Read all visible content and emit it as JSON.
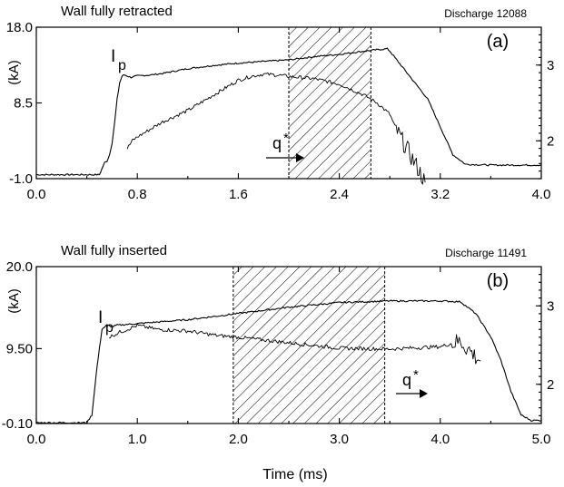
{
  "chart_data": [
    {
      "type": "line",
      "panel_label": "(a)",
      "title": "Wall fully retracted",
      "discharge": "Discharge 12088",
      "xlabel": "",
      "ylabel": "(kA)",
      "xlim": [
        0.0,
        4.0
      ],
      "ylim": [
        -1.0,
        18.0
      ],
      "y2lim": [
        1.5,
        3.5
      ],
      "x_ticks": [
        "0.0",
        "0.8",
        "1.6",
        "2.4",
        "3.2",
        "4.0"
      ],
      "y_ticks": [
        "18.0",
        "8.5",
        "-1.0"
      ],
      "y_tick_values": [
        18.0,
        8.5,
        -1.0
      ],
      "y2_ticks": [
        "3",
        "2"
      ],
      "y2_tick_values": [
        3,
        2
      ],
      "shaded_region": [
        2.0,
        2.65
      ],
      "series": [
        {
          "name": "Ip",
          "label_main": "I",
          "label_sub": "p",
          "axis": "left",
          "x": [
            0.0,
            0.4,
            0.5,
            0.54,
            0.56,
            0.58,
            0.6,
            0.62,
            0.64,
            0.66,
            0.68,
            0.7,
            0.75,
            0.8,
            0.9,
            1.0,
            1.2,
            1.4,
            1.6,
            1.8,
            2.0,
            2.2,
            2.4,
            2.6,
            2.78,
            2.8,
            2.85,
            2.9,
            3.0,
            3.1,
            3.2,
            3.3,
            3.4,
            3.6,
            4.0
          ],
          "values": [
            -0.5,
            -0.5,
            -0.5,
            1.0,
            1.2,
            2.0,
            3.5,
            6.0,
            9.0,
            11.0,
            11.9,
            12.0,
            11.7,
            11.9,
            12.0,
            12.2,
            12.8,
            13.2,
            13.5,
            13.7,
            13.9,
            14.3,
            14.6,
            15.0,
            15.3,
            15.0,
            14.0,
            13.0,
            11.0,
            9.0,
            5.5,
            2.0,
            0.8,
            0.7,
            0.7
          ]
        },
        {
          "name": "q*",
          "label_main": "q",
          "label_sup": "*",
          "axis": "right",
          "x": [
            0.72,
            0.76,
            0.8,
            0.9,
            1.0,
            1.2,
            1.4,
            1.6,
            1.7,
            1.8,
            1.9,
            2.0,
            2.2,
            2.4,
            2.6,
            2.7,
            2.8,
            2.85,
            2.9,
            2.95,
            3.0,
            3.05,
            3.08
          ],
          "values": [
            1.9,
            2.0,
            2.05,
            2.15,
            2.25,
            2.4,
            2.6,
            2.8,
            2.85,
            2.88,
            2.87,
            2.85,
            2.82,
            2.75,
            2.6,
            2.5,
            2.35,
            2.15,
            2.0,
            1.85,
            1.7,
            1.55,
            1.45
          ]
        }
      ]
    },
    {
      "type": "line",
      "panel_label": "(b)",
      "title": "Wall fully inserted",
      "discharge": "Discharge 11491",
      "xlabel": "Time (ms)",
      "ylabel": "(kA)",
      "xlim": [
        0.0,
        5.0
      ],
      "ylim": [
        -0.1,
        20.0
      ],
      "y2lim": [
        1.5,
        3.5
      ],
      "x_ticks": [
        "0.0",
        "1.0",
        "2.0",
        "3.0",
        "4.0",
        "5.0"
      ],
      "y_ticks": [
        "20.0",
        "9.50",
        "-0.10"
      ],
      "y_tick_values": [
        20.0,
        9.5,
        -0.1
      ],
      "y2_ticks": [
        "3",
        "2"
      ],
      "y2_tick_values": [
        3,
        2
      ],
      "shaded_region": [
        1.95,
        3.45
      ],
      "series": [
        {
          "name": "Ip",
          "label_main": "I",
          "label_sub": "p",
          "axis": "left",
          "x": [
            0.0,
            0.5,
            0.55,
            0.6,
            0.65,
            0.7,
            0.75,
            0.8,
            1.0,
            1.5,
            2.0,
            2.5,
            3.0,
            3.5,
            4.0,
            4.2,
            4.25,
            4.35,
            4.5,
            4.6,
            4.7,
            4.8,
            4.9,
            5.0
          ],
          "values": [
            0.0,
            0.0,
            1.0,
            7.0,
            12.0,
            12.5,
            12.3,
            12.5,
            12.7,
            13.2,
            14.0,
            14.8,
            15.4,
            15.6,
            15.6,
            15.5,
            15.0,
            14.0,
            11.0,
            8.0,
            4.0,
            1.0,
            0.3,
            0.3
          ]
        },
        {
          "name": "q*",
          "label_main": "q",
          "label_sup": "*",
          "axis": "right",
          "x": [
            0.72,
            0.8,
            1.0,
            1.2,
            1.5,
            1.8,
            2.0,
            2.5,
            3.0,
            3.5,
            4.0,
            4.2,
            4.3,
            4.35,
            4.4
          ],
          "values": [
            2.6,
            2.65,
            2.75,
            2.7,
            2.68,
            2.62,
            2.6,
            2.53,
            2.46,
            2.45,
            2.48,
            2.55,
            2.42,
            2.35,
            2.3
          ]
        }
      ]
    }
  ]
}
